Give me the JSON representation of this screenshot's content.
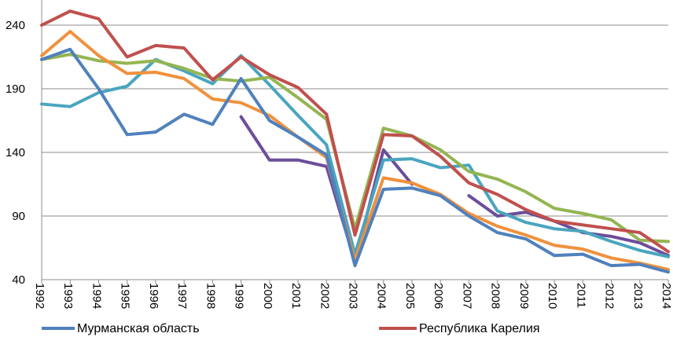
{
  "chart_data": {
    "type": "line",
    "categories": [
      "1992",
      "1993",
      "1994",
      "1995",
      "1996",
      "1997",
      "1998",
      "1999",
      "2000",
      "2001",
      "2002",
      "2003",
      "2004",
      "2005",
      "2006",
      "2007",
      "2008",
      "2009",
      "2010",
      "2011",
      "2012",
      "2013",
      "2014"
    ],
    "ylim": [
      40,
      250
    ],
    "yticks": [
      40,
      90,
      140,
      190,
      240
    ],
    "grid": true,
    "legend_position": "bottom",
    "series": [
      {
        "name": "",
        "color": "#7F9FCF",
        "values": [
          null,
          null,
          null,
          null,
          null,
          null,
          null,
          null,
          null,
          null,
          null,
          null,
          null,
          null,
          null,
          null,
          null,
          null,
          null,
          null,
          null,
          null,
          null
        ]
      },
      {
        "name": "",
        "color": "#6B4E9B",
        "values": [
          null,
          null,
          null,
          null,
          null,
          null,
          null,
          168,
          134,
          134,
          129,
          54,
          142,
          115,
          null,
          106,
          90,
          93,
          86,
          77,
          74,
          69,
          59
        ]
      },
      {
        "name": "",
        "color": "#4AA5BF",
        "values": [
          178,
          176,
          187,
          192,
          213,
          204,
          194,
          216,
          193,
          169,
          146,
          60,
          134,
          135,
          128,
          130,
          94,
          85,
          80,
          78,
          70,
          63,
          58
        ]
      },
      {
        "name": "",
        "color": "#94B552",
        "values": [
          213,
          217,
          212,
          210,
          212,
          206,
          198,
          196,
          199,
          183,
          166,
          80,
          159,
          153,
          142,
          125,
          119,
          109,
          96,
          92,
          87,
          71,
          70
        ]
      },
      {
        "name": "",
        "color": "#F0913D",
        "values": [
          216,
          235,
          216,
          202,
          203,
          198,
          182,
          179,
          169,
          152,
          136,
          55,
          120,
          116,
          107,
          92,
          82,
          75,
          67,
          64,
          57,
          53,
          48
        ]
      },
      {
        "name": "Республика Карелия",
        "color": "#C0504D",
        "values": [
          240,
          251,
          245,
          215,
          224,
          222,
          197,
          215,
          201,
          191,
          170,
          75,
          154,
          153,
          137,
          116,
          107,
          95,
          86,
          83,
          80,
          77,
          62
        ]
      },
      {
        "name": "Мурманская область",
        "color": "#4F81BD",
        "values": [
          213,
          221,
          190,
          154,
          156,
          170,
          162,
          198,
          165,
          152,
          138,
          51,
          111,
          112,
          106,
          90,
          77,
          72,
          59,
          60,
          51,
          52,
          46
        ]
      }
    ]
  }
}
